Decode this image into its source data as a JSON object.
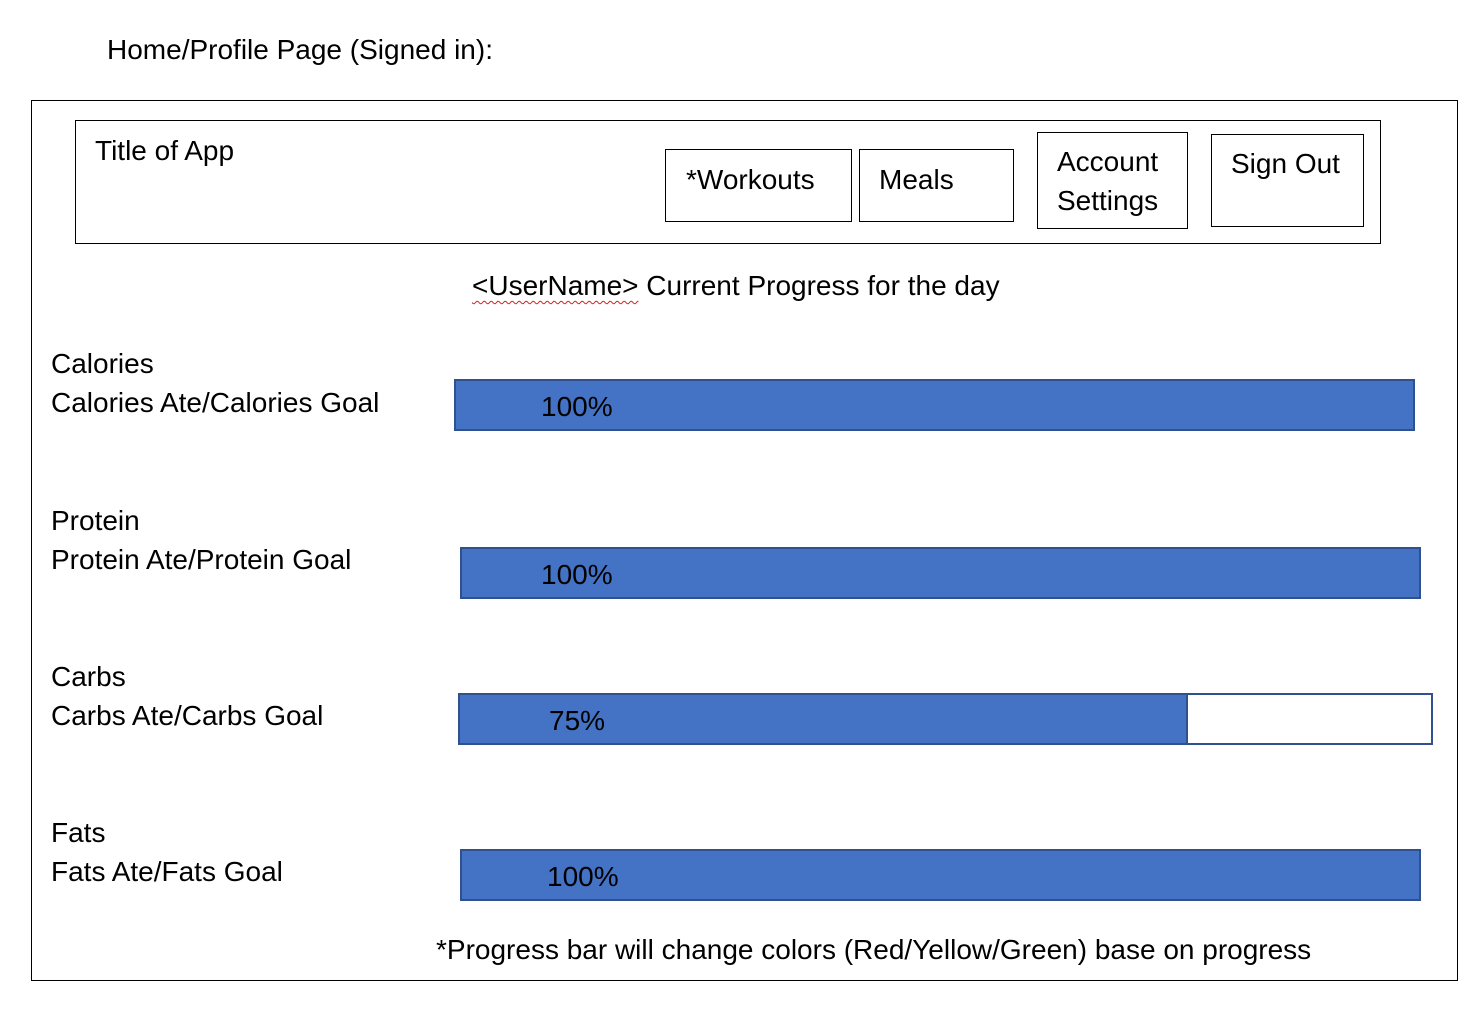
{
  "page_heading": "Home/Profile Page (Signed in):",
  "header": {
    "app_title": "Title of App",
    "nav": {
      "workouts": "*Workouts",
      "meals": "Meals",
      "account_settings": "Account\nSettings",
      "sign_out": "Sign Out"
    }
  },
  "progress_heading": {
    "username": "<UserName>",
    "text": " Current Progress for the day"
  },
  "metrics": [
    {
      "name": "Calories",
      "detail": "Calories Ate/Calories Goal",
      "percent_label": "100%",
      "progress": 1.0
    },
    {
      "name": "Protein",
      "detail": "Protein Ate/Protein Goal",
      "percent_label": "100%",
      "progress": 1.0
    },
    {
      "name": "Carbs",
      "detail": "Carbs Ate/Carbs Goal",
      "percent_label": "75%",
      "progress": 0.75
    },
    {
      "name": "Fats",
      "detail": "Fats Ate/Fats Goal",
      "percent_label": "100%",
      "progress": 1.0
    }
  ],
  "footnote": "*Progress bar will change colors (Red/Yellow/Green) base on progress",
  "colors": {
    "bar_fill": "#4472c4",
    "bar_border": "#2f528f",
    "spellcheck_underline": "#d02020"
  }
}
